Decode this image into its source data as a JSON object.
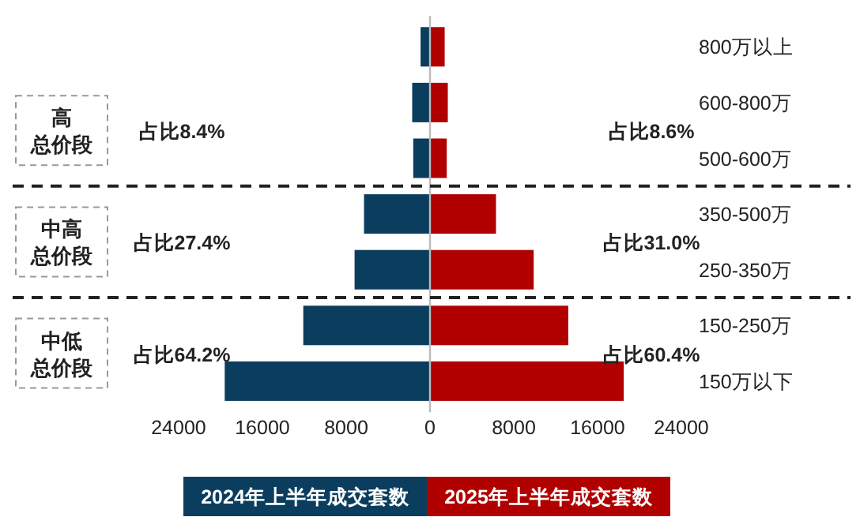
{
  "chart_data": {
    "type": "bar",
    "orientation": "horizontal",
    "categories": [
      "800万以上",
      "600-800万",
      "500-600万",
      "350-500万",
      "250-350万",
      "150-250万",
      "150万以下"
    ],
    "stacked": true,
    "series": [
      {
        "name": "2024年上半年成交套数",
        "color": "#0b3d5e",
        "values": [
          -900,
          -1700,
          -1600,
          -6300,
          -7200,
          -12100,
          -19600
        ]
      },
      {
        "name": "2025年上半年成交套数",
        "color": "#b00000",
        "values": [
          1400,
          1700,
          1600,
          6300,
          9900,
          13200,
          18500
        ]
      }
    ],
    "xlim": [
      -24000,
      24000
    ],
    "xticks": [
      {
        "value": -24000,
        "label": "24000"
      },
      {
        "value": -16000,
        "label": "16000"
      },
      {
        "value": -8000,
        "label": "8000"
      },
      0,
      8000,
      16000,
      24000
    ],
    "annotations": [
      "高总价段",
      "中高总价段",
      "中低总价段",
      "占比8.4%",
      "占比27.4%",
      "占比64.2%",
      "占比8.6%",
      "占比31.0%",
      "占比60.4%"
    ],
    "legend": "bottom",
    "grid": false
  }
}
